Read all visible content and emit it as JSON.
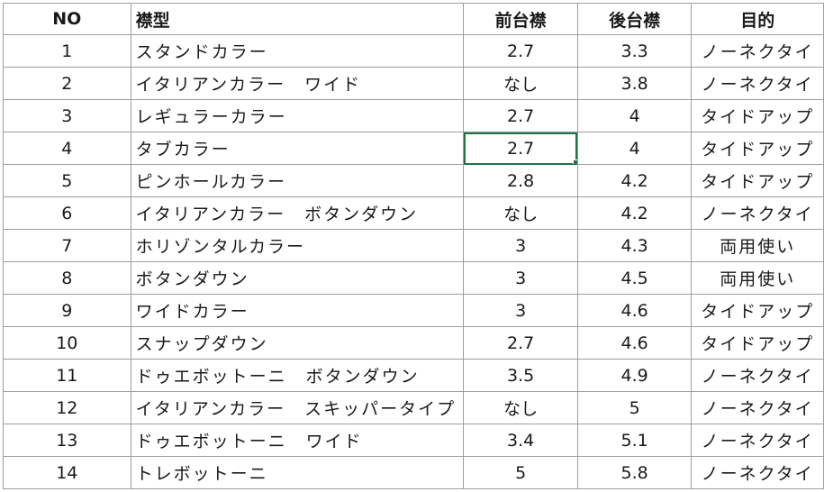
{
  "headers": {
    "no": "NO",
    "collar_type": "襟型",
    "front_collar": "前台襟",
    "back_collar": "後台襟",
    "purpose": "目的"
  },
  "rows": [
    {
      "no": "1",
      "type": "スタンドカラー",
      "front": "2.7",
      "back": "3.3",
      "purpose": "ノーネクタイ"
    },
    {
      "no": "2",
      "type": "イタリアンカラー　ワイド",
      "front": "なし",
      "back": "3.8",
      "purpose": "ノーネクタイ"
    },
    {
      "no": "3",
      "type": "レギュラーカラー",
      "front": "2.7",
      "back": "4",
      "purpose": "タイドアップ"
    },
    {
      "no": "4",
      "type": "タブカラー",
      "front": "2.7",
      "back": "4",
      "purpose": "タイドアップ"
    },
    {
      "no": "5",
      "type": "ピンホールカラー",
      "front": "2.8",
      "back": "4.2",
      "purpose": "タイドアップ"
    },
    {
      "no": "6",
      "type": "イタリアンカラー　ボタンダウン",
      "front": "なし",
      "back": "4.2",
      "purpose": "ノーネクタイ"
    },
    {
      "no": "7",
      "type": "ホリゾンタルカラー",
      "front": "3",
      "back": "4.3",
      "purpose": "両用使い"
    },
    {
      "no": "8",
      "type": "ボタンダウン",
      "front": "3",
      "back": "4.5",
      "purpose": "両用使い"
    },
    {
      "no": "9",
      "type": "ワイドカラー",
      "front": "3",
      "back": "4.6",
      "purpose": "タイドアップ"
    },
    {
      "no": "10",
      "type": "スナップダウン",
      "front": "2.7",
      "back": "4.6",
      "purpose": "タイドアップ"
    },
    {
      "no": "11",
      "type": "ドゥエボットーニ　ボタンダウン",
      "front": "3.5",
      "back": "4.9",
      "purpose": "ノーネクタイ"
    },
    {
      "no": "12",
      "type": "イタリアンカラー　スキッパータイプ",
      "front": "なし",
      "back": "5",
      "purpose": "ノーネクタイ"
    },
    {
      "no": "13",
      "type": "ドゥエボットーニ　ワイド",
      "front": "3.4",
      "back": "5.1",
      "purpose": "ノーネクタイ"
    },
    {
      "no": "14",
      "type": "トレボットーニ",
      "front": "5",
      "back": "5.8",
      "purpose": "ノーネクタイ"
    }
  ],
  "selection": {
    "row": 4,
    "column": "front",
    "accent_color": "#217346"
  }
}
